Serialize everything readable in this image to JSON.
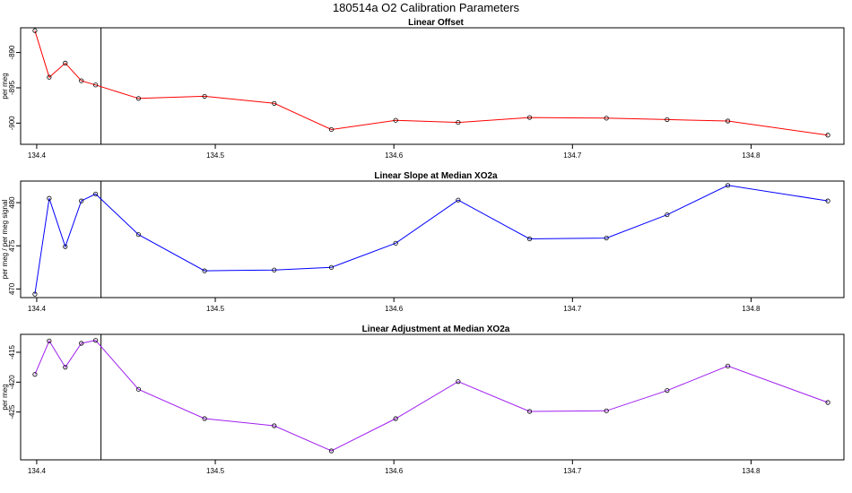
{
  "title": "180514a   O2 Calibration Parameters",
  "chart_data": [
    {
      "type": "line",
      "title": "Linear Offset",
      "xlabel": "",
      "ylabel": "per meg",
      "color": "#ff0000",
      "x": [
        134.399,
        134.407,
        134.416,
        134.425,
        134.433,
        134.457,
        134.494,
        134.533,
        134.565,
        134.601,
        134.636,
        134.676,
        134.719,
        134.753,
        134.787,
        134.843
      ],
      "y": [
        -886.9,
        -893.5,
        -891.5,
        -894.0,
        -894.6,
        -896.5,
        -896.2,
        -897.2,
        -900.9,
        -899.6,
        -899.9,
        -899.2,
        -899.3,
        -899.5,
        -899.7,
        -901.7
      ],
      "xlim": [
        134.391,
        134.852
      ],
      "ylim": [
        -903.0,
        -886.5
      ],
      "xticks": [
        134.4,
        134.5,
        134.6,
        134.7,
        134.8
      ],
      "xtick_labels": [
        "134.4",
        "134.5",
        "134.6",
        "134.7",
        "134.8"
      ],
      "yticks": [
        -890,
        -895,
        -900
      ],
      "ytick_labels": [
        "-890",
        "-895",
        "-900"
      ],
      "vline_x": 134.436
    },
    {
      "type": "line",
      "title": "Linear Slope at Median XO2a",
      "xlabel": "",
      "ylabel": "per meg / per meg signal",
      "color": "#0000ff",
      "x": [
        134.399,
        134.407,
        134.416,
        134.425,
        134.433,
        134.457,
        134.494,
        134.533,
        134.565,
        134.601,
        134.636,
        134.676,
        134.719,
        134.753,
        134.787,
        134.843
      ],
      "y": [
        469.4,
        480.5,
        474.9,
        480.2,
        481.0,
        476.3,
        472.1,
        472.2,
        472.5,
        475.3,
        480.3,
        475.8,
        475.9,
        478.6,
        482.0,
        480.2
      ],
      "xlim": [
        134.391,
        134.852
      ],
      "ylim": [
        469.0,
        482.5
      ],
      "xticks": [
        134.4,
        134.5,
        134.6,
        134.7,
        134.8
      ],
      "xtick_labels": [
        "134.4",
        "134.5",
        "134.6",
        "134.7",
        "134.8"
      ],
      "yticks": [
        470,
        475,
        480
      ],
      "ytick_labels": [
        "470",
        "475",
        "480"
      ],
      "vline_x": 134.436
    },
    {
      "type": "line",
      "title": "Linear Adjustment at Median XO2a",
      "xlabel": "",
      "ylabel": "per meg",
      "color": "#a020f0",
      "x": [
        134.399,
        134.407,
        134.416,
        134.425,
        134.433,
        134.457,
        134.494,
        134.533,
        134.565,
        134.601,
        134.636,
        134.676,
        134.719,
        134.753,
        134.787,
        134.843
      ],
      "y": [
        -418.7,
        -413.1,
        -417.5,
        -413.5,
        -413.0,
        -421.2,
        -426.1,
        -427.3,
        -431.5,
        -426.1,
        -419.9,
        -424.9,
        -424.8,
        -421.4,
        -417.3,
        -423.4
      ],
      "xlim": [
        134.391,
        134.852
      ],
      "ylim": [
        -433.0,
        -412.0
      ],
      "xticks": [
        134.4,
        134.5,
        134.6,
        134.7,
        134.8
      ],
      "xtick_labels": [
        "134.4",
        "134.5",
        "134.6",
        "134.7",
        "134.8"
      ],
      "yticks": [
        -415,
        -420,
        -425
      ],
      "ytick_labels": [
        "-415",
        "-420",
        "-425"
      ],
      "vline_x": 134.436
    }
  ]
}
